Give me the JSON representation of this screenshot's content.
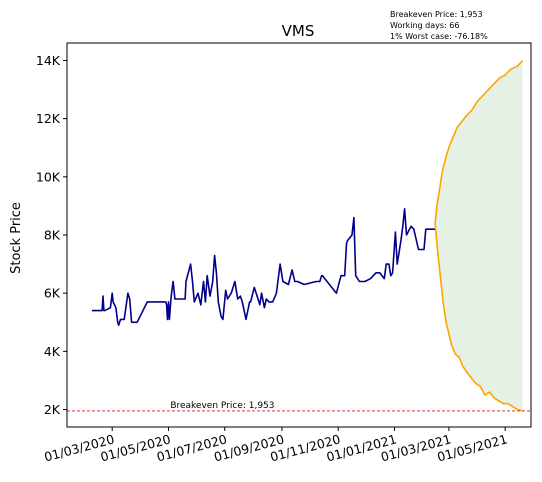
{
  "chart_data": {
    "type": "line",
    "title": "VMS",
    "ylabel": "Stock Price",
    "xlabel": "",
    "ylim": [
      1400,
      14600
    ],
    "xlim": [
      "2020-01-12",
      "2021-05-29"
    ],
    "y_ticks": [
      {
        "value": 2000,
        "label": "2K"
      },
      {
        "value": 4000,
        "label": "4K"
      },
      {
        "value": 6000,
        "label": "6K"
      },
      {
        "value": 8000,
        "label": "8K"
      },
      {
        "value": 10000,
        "label": "10K"
      },
      {
        "value": 12000,
        "label": "12K"
      },
      {
        "value": 14000,
        "label": "14K"
      }
    ],
    "x_ticks": [
      {
        "value": "2020-03-01",
        "label": "01/03/2020"
      },
      {
        "value": "2020-05-01",
        "label": "01/05/2020"
      },
      {
        "value": "2020-07-01",
        "label": "01/07/2020"
      },
      {
        "value": "2020-09-01",
        "label": "01/09/2020"
      },
      {
        "value": "2020-11-01",
        "label": "01/11/2020"
      },
      {
        "value": "2021-01-01",
        "label": "01/01/2021"
      },
      {
        "value": "2021-03-01",
        "label": "01/03/2021"
      },
      {
        "value": "2021-05-01",
        "label": "01/05/2021"
      }
    ],
    "grid": false,
    "info_lines": [
      "Breakeven Price: 1,953",
      "Working days: 66",
      "1% Worst case: -76.18%"
    ],
    "breakeven": {
      "value": 1953,
      "label": "Breakeven Price: 1,953",
      "color": "#e31a1c",
      "label_date": "2020-05-03"
    },
    "series": [
      {
        "role": "historical",
        "color": "#00008b",
        "x": [
          "2020-02-08",
          "2020-02-19",
          "2020-02-20",
          "2020-02-21",
          "2020-02-22",
          "2020-02-28",
          "2020-03-01",
          "2020-03-02",
          "2020-03-05",
          "2020-03-07",
          "2020-03-08",
          "2020-03-10",
          "2020-03-14",
          "2020-03-18",
          "2020-03-20",
          "2020-03-22",
          "2020-03-28",
          "2020-04-08",
          "2020-04-13",
          "2020-04-28",
          "2020-04-29",
          "2020-04-30",
          "2020-05-01",
          "2020-05-02",
          "2020-05-04",
          "2020-05-06",
          "2020-05-08",
          "2020-05-10",
          "2020-05-12",
          "2020-05-19",
          "2020-05-20",
          "2020-05-25",
          "2020-05-27",
          "2020-05-29",
          "2020-06-02",
          "2020-06-05",
          "2020-06-08",
          "2020-06-10",
          "2020-06-12",
          "2020-06-15",
          "2020-06-18",
          "2020-06-20",
          "2020-06-22",
          "2020-06-24",
          "2020-06-27",
          "2020-06-29",
          "2020-07-02",
          "2020-07-04",
          "2020-07-08",
          "2020-07-12",
          "2020-07-15",
          "2020-07-18",
          "2020-07-20",
          "2020-07-24",
          "2020-07-28",
          "2020-07-29",
          "2020-08-02",
          "2020-08-06",
          "2020-08-08",
          "2020-08-10",
          "2020-08-13",
          "2020-08-15",
          "2020-08-18",
          "2020-08-22",
          "2020-08-26",
          "2020-08-30",
          "2020-09-02",
          "2020-09-08",
          "2020-09-12",
          "2020-09-15",
          "2020-09-18",
          "2020-09-25",
          "2020-10-08",
          "2020-10-12",
          "2020-10-14",
          "2020-10-15",
          "2020-10-30",
          "2020-11-04",
          "2020-11-08",
          "2020-11-10",
          "2020-11-11",
          "2020-11-16",
          "2020-11-18",
          "2020-11-20",
          "2020-11-24",
          "2020-11-30",
          "2020-12-06",
          "2020-12-12",
          "2020-12-16",
          "2020-12-21",
          "2020-12-23",
          "2020-12-26",
          "2020-12-28",
          "2020-12-30",
          "2021-01-02",
          "2021-01-04",
          "2021-01-08",
          "2021-01-10",
          "2021-01-12",
          "2021-01-14",
          "2021-01-19",
          "2021-01-22",
          "2021-01-27",
          "2021-02-02",
          "2021-02-04",
          "2021-02-12",
          "2021-02-13",
          "2021-02-14"
        ],
        "y": [
          5400,
          5400,
          5900,
          5400,
          5400,
          5500,
          6000,
          5700,
          5500,
          5000,
          4900,
          5100,
          5100,
          6000,
          5800,
          5000,
          5000,
          5700,
          5700,
          5700,
          5600,
          5100,
          5700,
          5100,
          5900,
          6400,
          5800,
          5800,
          5800,
          5800,
          6400,
          7000,
          6400,
          5700,
          6000,
          5600,
          6400,
          5700,
          6600,
          5900,
          6400,
          7300,
          6700,
          5700,
          5200,
          5100,
          6100,
          5800,
          6000,
          6400,
          5800,
          5900,
          5700,
          5100,
          5700,
          5700,
          6200,
          5800,
          5600,
          6000,
          5500,
          5800,
          5700,
          5700,
          6000,
          7000,
          6400,
          6300,
          6800,
          6400,
          6400,
          6300,
          6400,
          6400,
          6600,
          6600,
          6000,
          6600,
          6600,
          7700,
          7800,
          8000,
          8600,
          6600,
          6400,
          6400,
          6500,
          6700,
          6700,
          6500,
          7000,
          7000,
          6600,
          6700,
          8100,
          7000,
          7800,
          8300,
          8900,
          8000,
          8300,
          8200,
          7500,
          7500,
          8200,
          8200,
          8200,
          8200
        ]
      },
      {
        "role": "best-case",
        "color": "#ffa500",
        "x": [
          "2021-02-14",
          "2021-02-16",
          "2021-02-19",
          "2021-02-22",
          "2021-02-26",
          "2021-03-02",
          "2021-03-06",
          "2021-03-10",
          "2021-03-15",
          "2021-03-20",
          "2021-03-26",
          "2021-04-01",
          "2021-04-07",
          "2021-04-13",
          "2021-04-19",
          "2021-04-25",
          "2021-05-01",
          "2021-05-07",
          "2021-05-14",
          "2021-05-20"
        ],
        "y": [
          8400,
          9000,
          9600,
          10200,
          10700,
          11100,
          11400,
          11700,
          11900,
          12100,
          12300,
          12600,
          12800,
          13000,
          13200,
          13400,
          13500,
          13700,
          13800,
          14000
        ]
      },
      {
        "role": "worst-case",
        "color": "#ffa500",
        "x": [
          "2021-02-14",
          "2021-02-17",
          "2021-02-20",
          "2021-02-23",
          "2021-02-26",
          "2021-03-01",
          "2021-03-04",
          "2021-03-08",
          "2021-03-12",
          "2021-03-16",
          "2021-03-20",
          "2021-03-25",
          "2021-03-30",
          "2021-04-04",
          "2021-04-09",
          "2021-04-14",
          "2021-04-19",
          "2021-04-24",
          "2021-04-29",
          "2021-05-04",
          "2021-05-09",
          "2021-05-14",
          "2021-05-20"
        ],
        "y": [
          8400,
          7400,
          6500,
          5600,
          5000,
          4600,
          4200,
          3900,
          3800,
          3500,
          3300,
          3100,
          2900,
          2800,
          2500,
          2600,
          2400,
          2300,
          2200,
          2200,
          2100,
          2000,
          1953
        ]
      }
    ],
    "band": {
      "color": "#2e8b2e",
      "opacity": 0.12
    }
  }
}
